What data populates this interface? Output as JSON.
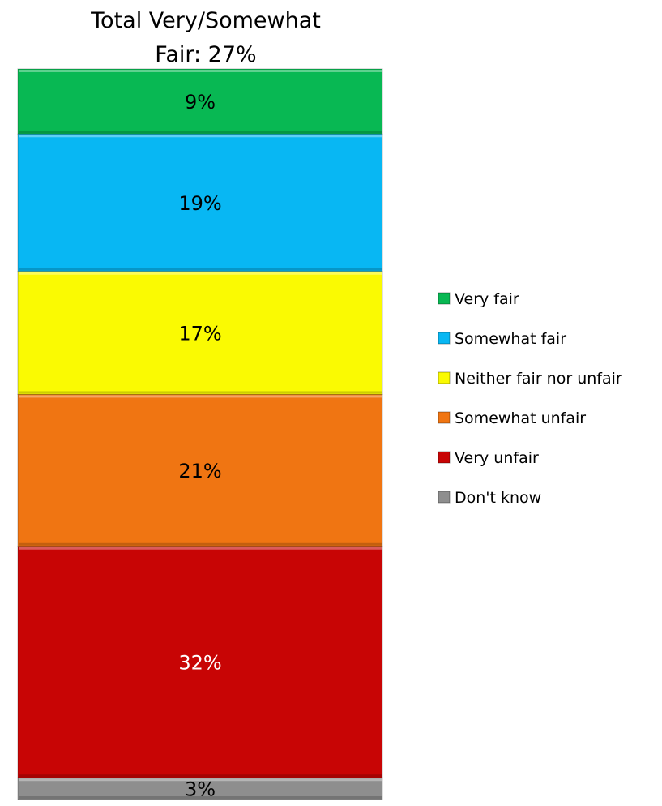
{
  "chart_data": {
    "type": "bar",
    "orientation": "vertical-stacked-100",
    "title": "Total Very/Somewhat Fair: 27%",
    "title_lines": [
      "Total Very/Somewhat",
      "Fair: 27%"
    ],
    "categories": [
      ""
    ],
    "series": [
      {
        "name": "Very fair",
        "values": [
          9
        ],
        "label": "9%",
        "color": "#08B853",
        "label_color": "#000000"
      },
      {
        "name": "Somewhat fair",
        "values": [
          19
        ],
        "label": "19%",
        "color": "#08B7F3",
        "label_color": "#000000"
      },
      {
        "name": "Neither fair nor unfair",
        "values": [
          17
        ],
        "label": "17%",
        "color": "#FAFA02",
        "label_color": "#000000"
      },
      {
        "name": "Somewhat unfair",
        "values": [
          21
        ],
        "label": "21%",
        "color": "#F07512",
        "label_color": "#000000"
      },
      {
        "name": "Very unfair",
        "values": [
          32
        ],
        "label": "32%",
        "color": "#C80505",
        "label_color": "#ffffff"
      },
      {
        "name": "Don't know",
        "values": [
          3
        ],
        "label": "3%",
        "color": "#8E8E8E",
        "label_color": "#000000"
      }
    ],
    "legend_position": "right",
    "grid": false
  }
}
